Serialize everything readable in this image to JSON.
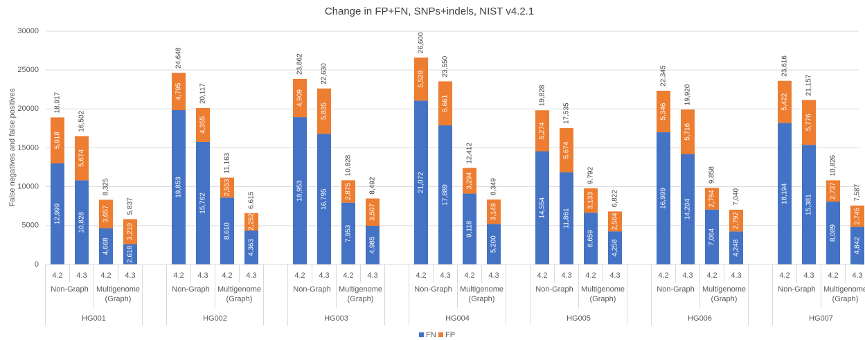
{
  "chart_data": {
    "type": "stacked-bar",
    "title": "Change in FP+FN, SNPs+indels, NIST v4.2.1",
    "y_label": "False negatives and false positives",
    "categories": [
      "4.2",
      "4.3",
      "4.2",
      "4.3",
      "4.2",
      "4.3",
      "4.2",
      "4.3",
      "4.2",
      "4.3",
      "4.2",
      "4.3",
      "4.2",
      "4.3",
      "4.2",
      "4.3",
      "4.2",
      "4.3",
      "4.2",
      "4.3",
      "4.2",
      "4.3",
      "4.2",
      "4.3",
      "4.2",
      "4.3",
      "4.2",
      "4.3"
    ],
    "group_labels": [
      "Non-Graph",
      "Multigenome (Graph)",
      "Non-Graph",
      "Multigenome (Graph)",
      "Non-Graph",
      "Multigenome (Graph)",
      "Non-Graph",
      "Multigenome (Graph)",
      "Non-Graph",
      "Multigenome (Graph)",
      "Non-Graph",
      "Multigenome (Graph)",
      "Non-Graph",
      "Multigenome (Graph)"
    ],
    "samples": [
      "HG001",
      "HG002",
      "HG003",
      "HG004",
      "HG005",
      "HG006",
      "HG007"
    ],
    "series": [
      {
        "name": "FN",
        "color": "#4472c4",
        "values": [
          12999,
          10828,
          4668,
          2618,
          19853,
          15762,
          8610,
          4363,
          18953,
          16795,
          7953,
          4985,
          21072,
          17889,
          9118,
          5200,
          14554,
          11861,
          6659,
          4258,
          16999,
          14204,
          7064,
          4248,
          18194,
          15381,
          8089,
          4842
        ],
        "value_labels": [
          "12,999",
          "10,828",
          "4,668",
          "2,618",
          "19,853",
          "15,762",
          "8,610",
          "4,363",
          "18,953",
          "16,795",
          "7,953",
          "4,985",
          "21,072",
          "17,889",
          "9,118",
          "5,200",
          "14,554",
          "11,861",
          "6,659",
          "4,258",
          "16,999",
          "14,204",
          "7,064",
          "4,248",
          "18,194",
          "15,381",
          "8,089",
          "4,842"
        ]
      },
      {
        "name": "FP",
        "color": "#ed7d31",
        "values": [
          5918,
          5674,
          3657,
          3219,
          4795,
          4355,
          2553,
          2252,
          4909,
          5835,
          2875,
          3507,
          5528,
          5661,
          3294,
          3149,
          5274,
          5674,
          3133,
          2564,
          5346,
          5716,
          2794,
          2792,
          5422,
          5776,
          2737,
          2745
        ],
        "value_labels": [
          "5,918",
          "5,674",
          "3,657",
          "3,219",
          "4,795",
          "4,355",
          "2,553",
          "2,252",
          "4,909",
          "5,835",
          "2,875",
          "3,507",
          "5,528",
          "5,661",
          "3,294",
          "3,149",
          "5,274",
          "5,674",
          "3,133",
          "2,564",
          "5,346",
          "5,716",
          "2,794",
          "2,792",
          "5,422",
          "5,776",
          "2,737",
          "2,745"
        ]
      }
    ],
    "totals": {
      "values": [
        18917,
        16502,
        8325,
        5837,
        24648,
        20117,
        11163,
        6615,
        23862,
        22630,
        10828,
        8492,
        26600,
        23550,
        12412,
        8349,
        19828,
        17535,
        9792,
        6822,
        22345,
        19920,
        9858,
        7040,
        23616,
        21157,
        10826,
        7587
      ],
      "value_labels": [
        "18,917",
        "16,502",
        "8,325",
        "5,837",
        "24,648",
        "20,117",
        "11,163",
        "6,615",
        "23,862",
        "22,630",
        "10,828",
        "8,492",
        "26,600",
        "23,550",
        "12,412",
        "8,349",
        "19,828",
        "17,535",
        "9,792",
        "6,822",
        "22,345",
        "19,920",
        "9,858",
        "7,040",
        "23,616",
        "21,157",
        "10,826",
        "7,587"
      ]
    },
    "ylim": [
      0,
      30000
    ],
    "yticks": [
      0,
      5000,
      10000,
      15000,
      20000,
      25000,
      30000
    ],
    "grid": true
  }
}
